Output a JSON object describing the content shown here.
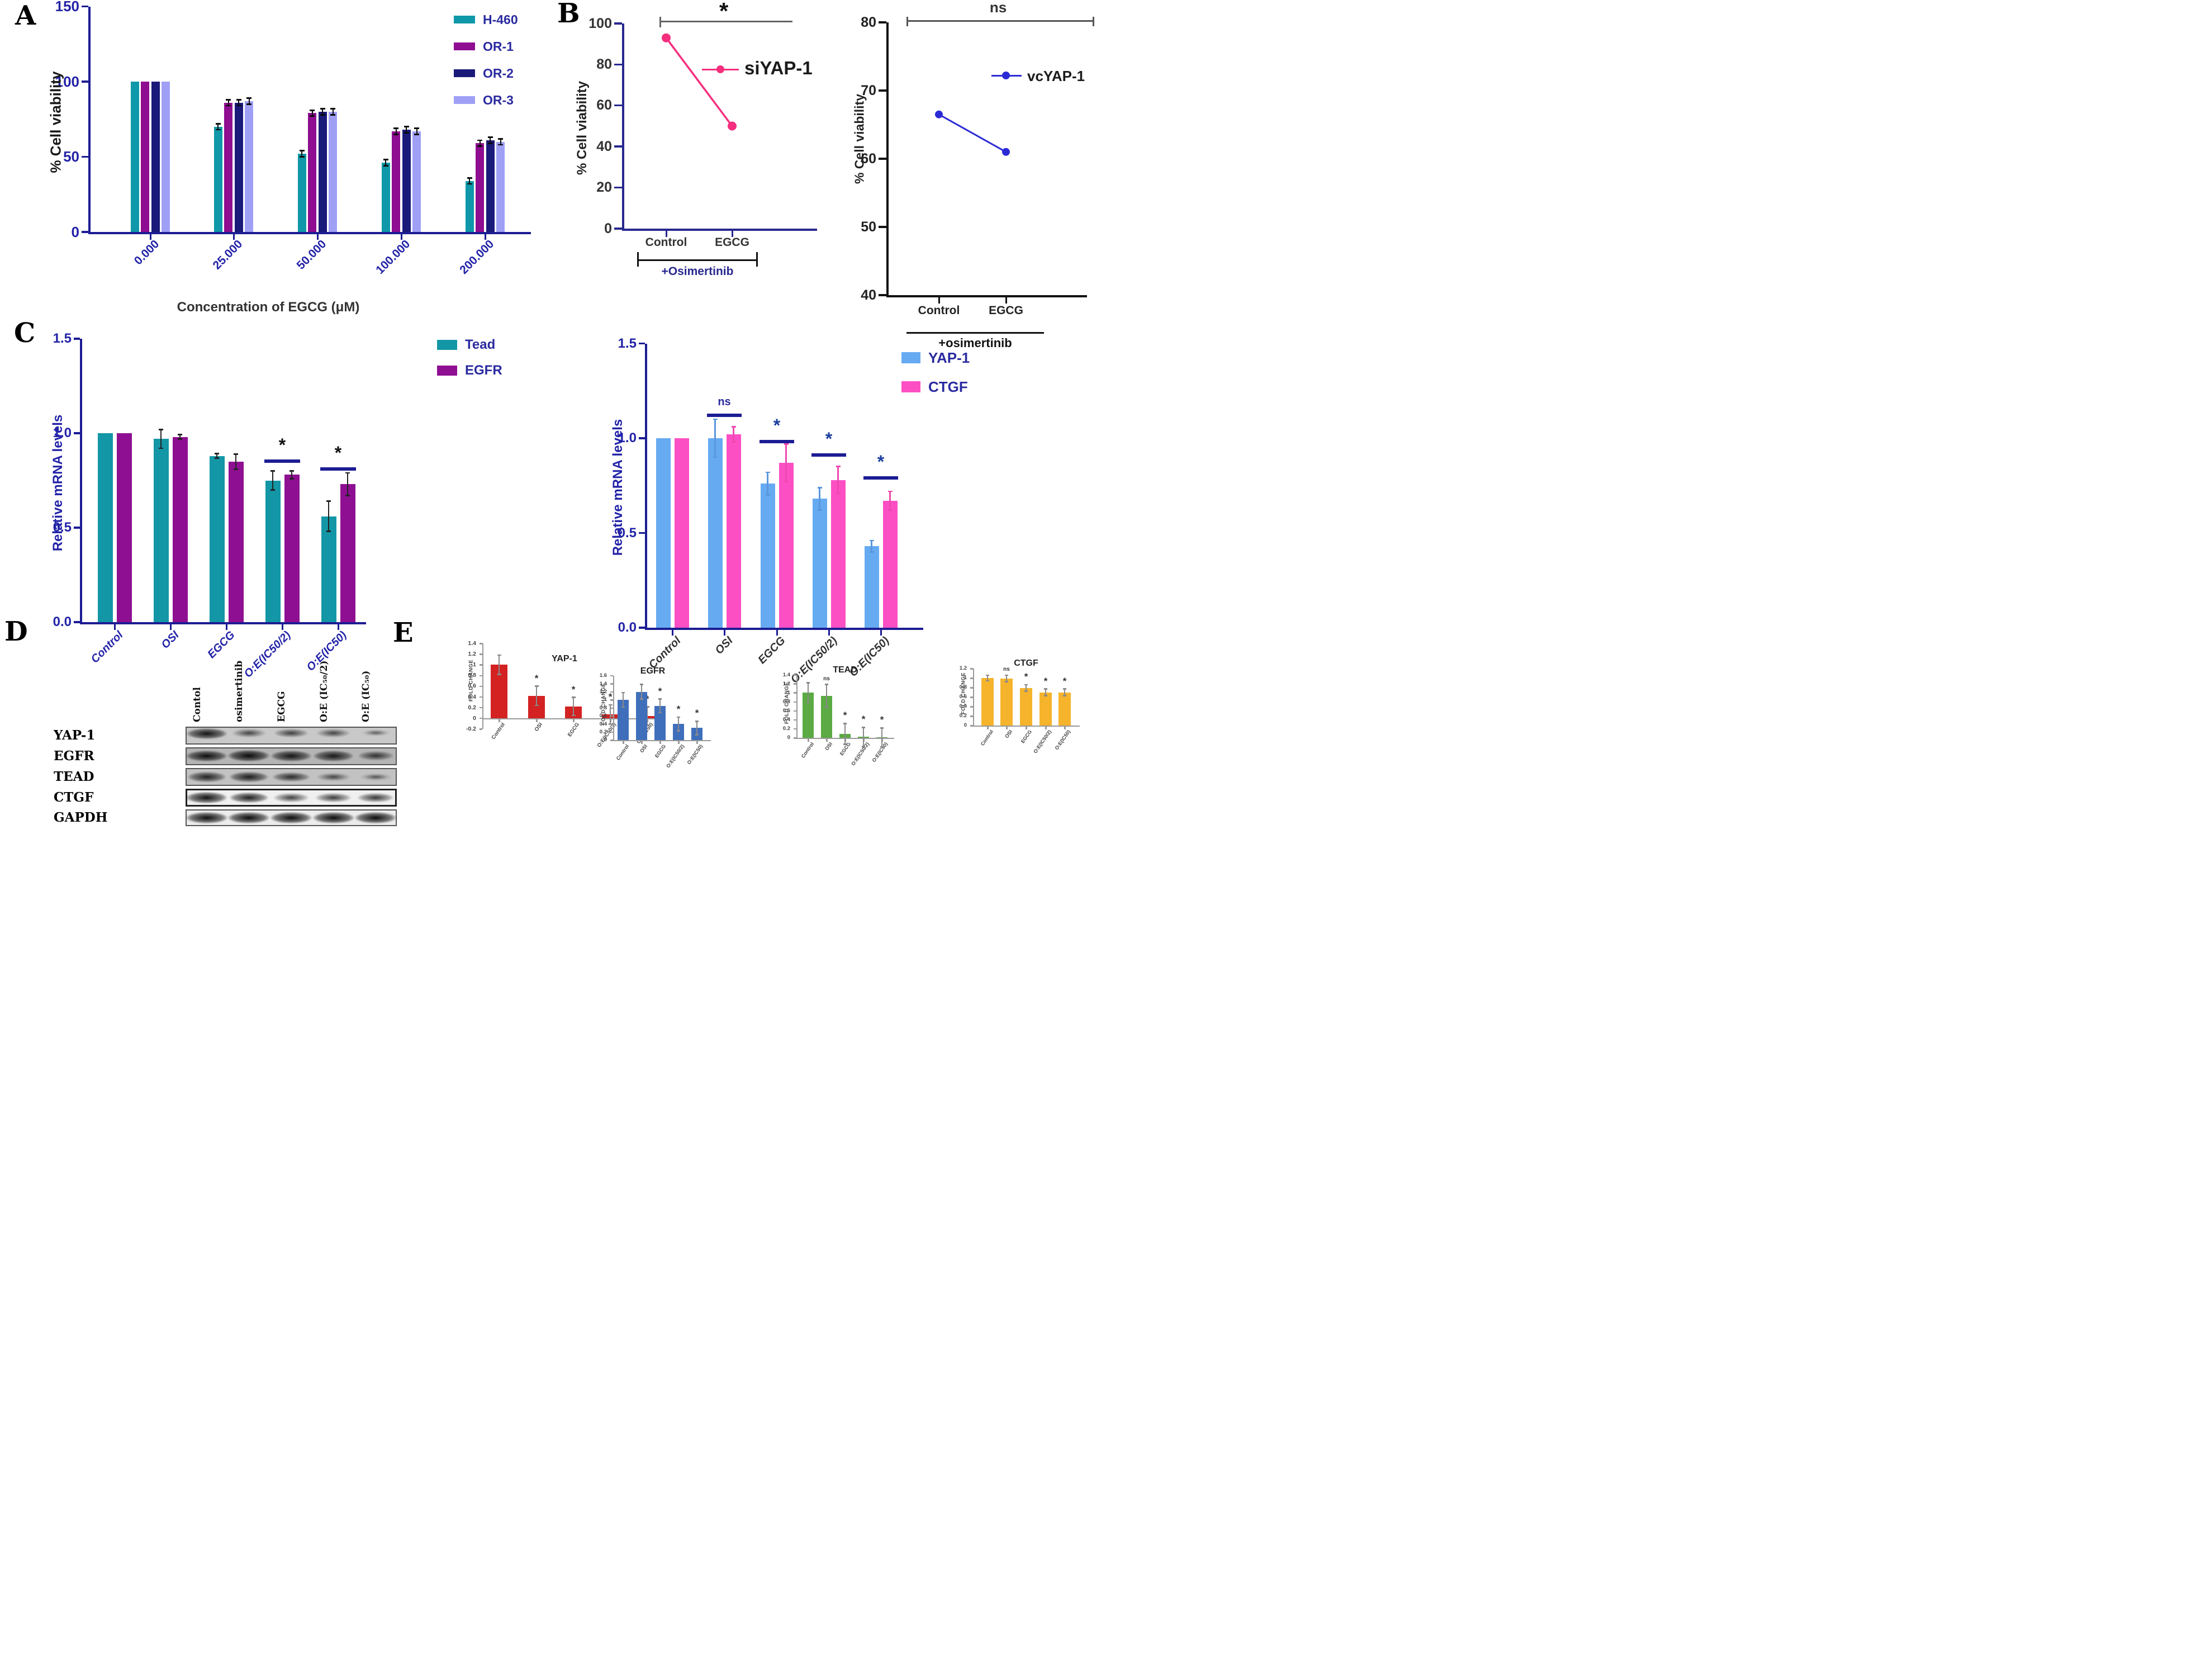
{
  "figure": {
    "panel_labels": [
      "A",
      "B",
      "C",
      "D",
      "E"
    ]
  },
  "chart_data": [
    {
      "id": "viability_egcg",
      "type": "bar",
      "xlabel": "Concentration of EGCG (μM)",
      "ylabel": "% Cell viability",
      "ylim": [
        0,
        150
      ],
      "ytick_vals": [
        0,
        50,
        100,
        150
      ],
      "ytick_labels": [
        "0",
        "50",
        "100",
        "150"
      ],
      "categories": [
        "0.000",
        "25.000",
        "50.000",
        "100.000",
        "200.000"
      ],
      "legend": true,
      "series": [
        {
          "name": "H-460",
          "color": "#0f98a9",
          "pattern": "pat-dot",
          "values": [
            100,
            70,
            52,
            46,
            34
          ],
          "errors": [
            0,
            2,
            2,
            2,
            2
          ]
        },
        {
          "name": "OR-1",
          "color": "#8e0d90",
          "pattern": "pat-dash",
          "values": [
            100,
            86,
            79,
            67,
            59
          ],
          "errors": [
            0,
            2,
            2,
            2,
            2
          ]
        },
        {
          "name": "OR-2",
          "color": "#1a1a7a",
          "pattern": "pat-dot-dark",
          "values": [
            100,
            86,
            80,
            68,
            61
          ],
          "errors": [
            0,
            2,
            2,
            2,
            2
          ]
        },
        {
          "name": "OR-3",
          "color": "#9fa0f5",
          "pattern": "",
          "values": [
            100,
            87,
            80,
            67,
            60
          ],
          "errors": [
            0,
            2,
            2,
            2,
            2
          ]
        }
      ]
    },
    {
      "id": "siyap1",
      "type": "line",
      "ylabel": "% Cell viability",
      "ylim": [
        0,
        100
      ],
      "ytick_vals": [
        0,
        20,
        40,
        60,
        80,
        100
      ],
      "ytick_labels": [
        "0",
        "20",
        "40",
        "60",
        "80",
        "100"
      ],
      "categories": [
        "Control",
        "EGCG"
      ],
      "values": [
        93,
        50
      ],
      "series_name": "siYAP-1",
      "color": "#f52e7e",
      "top_bracket_label": "*",
      "bottom_bracket_label": "+Osimertinib"
    },
    {
      "id": "vcyap1",
      "type": "line",
      "ylabel": "% Cell viability",
      "ylim": [
        40,
        80
      ],
      "ytick_vals": [
        40,
        50,
        60,
        70,
        80
      ],
      "ytick_labels": [
        "40",
        "50",
        "60",
        "70",
        "80"
      ],
      "categories": [
        "Control",
        "EGCG"
      ],
      "values": [
        66.5,
        61
      ],
      "series_name": "vcYAP-1",
      "color": "#2b2bd6",
      "top_bracket_label": "ns",
      "bottom_bracket_label": "+osimertinib"
    },
    {
      "id": "mrna_tead_egfr",
      "type": "bar",
      "ylabel": "Relative mRNA levels",
      "ylim": [
        0,
        1.5
      ],
      "ytick_vals": [
        0,
        0.5,
        1.0,
        1.5
      ],
      "ytick_labels": [
        "0.0",
        "0.5",
        "1.0",
        "1.5"
      ],
      "categories": [
        "Control",
        "OSI",
        "EGCG",
        "O:E(IC50/2)",
        "O:E(IC50)"
      ],
      "legend": true,
      "series": [
        {
          "name": "Tead",
          "color": "#1396a6",
          "pattern": "pat-dot",
          "values": [
            1.0,
            0.97,
            0.88,
            0.75,
            0.56
          ],
          "errors": [
            0,
            0.05,
            0.012,
            0.05,
            0.08
          ]
        },
        {
          "name": "EGFR",
          "color": "#8e0f92",
          "pattern": "pat-dot",
          "values": [
            1.0,
            0.98,
            0.85,
            0.78,
            0.73
          ],
          "errors": [
            0,
            0.012,
            0.04,
            0.02,
            0.06
          ]
        }
      ],
      "group_sig": [
        {
          "group": 3,
          "label": "*",
          "y": 0.86
        },
        {
          "group": 4,
          "label": "*",
          "y": 0.82
        }
      ]
    },
    {
      "id": "mrna_yap1_ctgf",
      "type": "bar",
      "ylabel": "Relative mRNA levels",
      "ylim": [
        0,
        1.5
      ],
      "ytick_vals": [
        0,
        0.5,
        1.0,
        1.5
      ],
      "ytick_labels": [
        "0.0",
        "0.5",
        "1.0",
        "1.5"
      ],
      "categories": [
        "Control",
        "OSI",
        "EGCG",
        "O:E(IC50/2)",
        "O:E(IC50)"
      ],
      "legend": true,
      "series": [
        {
          "name": "YAP-1",
          "color": "#66abf2",
          "err_color": "#5a97dd",
          "pattern": "",
          "values": [
            1.0,
            1.0,
            0.76,
            0.68,
            0.43
          ],
          "errors": [
            0,
            0.1,
            0.06,
            0.06,
            0.03
          ]
        },
        {
          "name": "CTGF",
          "color": "#fc4fc4",
          "err_color": "#ef49b0",
          "pattern": "",
          "values": [
            1.0,
            1.02,
            0.87,
            0.78,
            0.67
          ],
          "errors": [
            0,
            0.04,
            0.1,
            0.07,
            0.05
          ]
        }
      ],
      "group_sig": [
        {
          "group": 1,
          "label": "ns",
          "y": 1.13
        },
        {
          "group": 2,
          "label": "*",
          "y": 0.99
        },
        {
          "group": 3,
          "label": "*",
          "y": 0.92
        },
        {
          "group": 4,
          "label": "*",
          "y": 0.8
        }
      ]
    },
    {
      "id": "fold_yap1",
      "type": "bar",
      "title": "YAP-1",
      "ylabel": "FOLD CHANGE",
      "ylim": [
        -0.2,
        1.4
      ],
      "ytick_vals": [
        -0.2,
        0,
        0.2,
        0.4,
        0.6,
        0.8,
        1,
        1.2,
        1.4
      ],
      "ytick_labels": [
        "-0.2",
        "0",
        "0.2",
        "0.4",
        "0.6",
        "0.8",
        "1",
        "1.2",
        "1.4"
      ],
      "categories": [
        "Control",
        "OSI",
        "EGCG",
        "O:E(IC50/2)",
        "O:E(IC50)"
      ],
      "series": [
        {
          "name": "YAP-1",
          "color": "#d42222",
          "pattern": "",
          "values": [
            1.0,
            0.42,
            0.22,
            0.07,
            0.04
          ],
          "errors": [
            0.18,
            0.18,
            0.17,
            0.18,
            0.17
          ]
        }
      ],
      "sig": [
        "",
        "*",
        "*",
        "*",
        "*"
      ]
    },
    {
      "id": "fold_egfr",
      "type": "bar",
      "title": "EGFR",
      "ylabel": "FOLD CHANGE",
      "ylim": [
        0,
        1.6
      ],
      "ytick_vals": [
        0,
        0.2,
        0.4,
        0.6,
        0.8,
        1,
        1.2,
        1.4,
        1.6
      ],
      "ytick_labels": [
        "0",
        "0.2",
        "0.4",
        "0.6",
        "0.8",
        "1",
        "1.2",
        "1.4",
        "1.6"
      ],
      "categories": [
        "Control",
        "OSI",
        "EGCG",
        "O:E(IC50/2)",
        "O:E(IC50)"
      ],
      "series": [
        {
          "name": "EGFR",
          "color": "#3f6fbb",
          "pattern": "",
          "values": [
            1.0,
            1.2,
            0.85,
            0.4,
            0.3
          ],
          "errors": [
            0.18,
            0.18,
            0.17,
            0.17,
            0.17
          ]
        }
      ],
      "sig": [
        "",
        "",
        "*",
        "*",
        "*"
      ]
    },
    {
      "id": "fold_tead",
      "type": "bar",
      "title": "TEAD",
      "ylabel": "FOLD CHANGE",
      "ylim": [
        0,
        1.4
      ],
      "ytick_vals": [
        0,
        0.2,
        0.4,
        0.6,
        0.8,
        1,
        1.2,
        1.4
      ],
      "ytick_labels": [
        "0",
        "0.2",
        "0.4",
        "0.6",
        "0.8",
        "1",
        "1.2",
        "1.4"
      ],
      "categories": [
        "Control",
        "OSI",
        "EGCG",
        "O:E(IC50/2)",
        "O:E(IC50)"
      ],
      "series": [
        {
          "name": "TEAD",
          "color": "#5baa43",
          "pattern": "",
          "values": [
            1.0,
            0.93,
            0.09,
            0.02,
            0.01
          ],
          "errors": [
            0.22,
            0.25,
            0.23,
            0.21,
            0.21
          ]
        }
      ],
      "sig": [
        "",
        "ns",
        "*",
        "*",
        "*"
      ]
    },
    {
      "id": "fold_ctgf",
      "type": "bar",
      "title": "CTGF",
      "ylabel": "FOLD CHANGE",
      "ylim": [
        0,
        1.2
      ],
      "ytick_vals": [
        0,
        0.2,
        0.4,
        0.6,
        0.8,
        1,
        1.2
      ],
      "ytick_labels": [
        "0",
        "0.2",
        "0.4",
        "0.6",
        "0.8",
        "1",
        "1.2"
      ],
      "categories": [
        "Control",
        "OSI",
        "EGCG",
        "O:E(IC50/2)",
        "O:E(IC50)"
      ],
      "series": [
        {
          "name": "CTGF",
          "color": "#f5b42b",
          "pattern": "",
          "values": [
            1.0,
            0.99,
            0.79,
            0.7,
            0.7
          ],
          "errors": [
            0.06,
            0.07,
            0.07,
            0.07,
            0.07
          ]
        }
      ],
      "sig": [
        "",
        "ns",
        "*",
        "*",
        "*"
      ]
    }
  ],
  "blot": {
    "lanes": [
      "Contol",
      "osimertinib",
      "EGCG",
      "O:E (IC₅₀/2)",
      "O:E (IC₅₀)"
    ],
    "rows": [
      {
        "name": "YAP-1",
        "bg": "#c9c9c9",
        "yoff": 0.25,
        "intensities": [
          0.92,
          0.38,
          0.45,
          0.38,
          0.12
        ]
      },
      {
        "name": "EGFR",
        "bg": "#b5b5b5",
        "yoff": 0.45,
        "intensities": [
          0.97,
          1.0,
          0.88,
          0.85,
          0.55
        ]
      },
      {
        "name": "TEAD",
        "bg": "#c2c2c2",
        "yoff": 0.5,
        "intensities": [
          0.75,
          0.8,
          0.65,
          0.35,
          0.2
        ]
      },
      {
        "name": "CTGF",
        "bg": "#f0f0f0",
        "yoff": 0.5,
        "intensities": [
          0.95,
          0.82,
          0.5,
          0.55,
          0.6
        ]
      },
      {
        "name": "GAPDH",
        "bg": "#ececec",
        "yoff": 0.5,
        "intensities": [
          1.0,
          1.0,
          1.0,
          1.0,
          1.0
        ]
      }
    ]
  }
}
